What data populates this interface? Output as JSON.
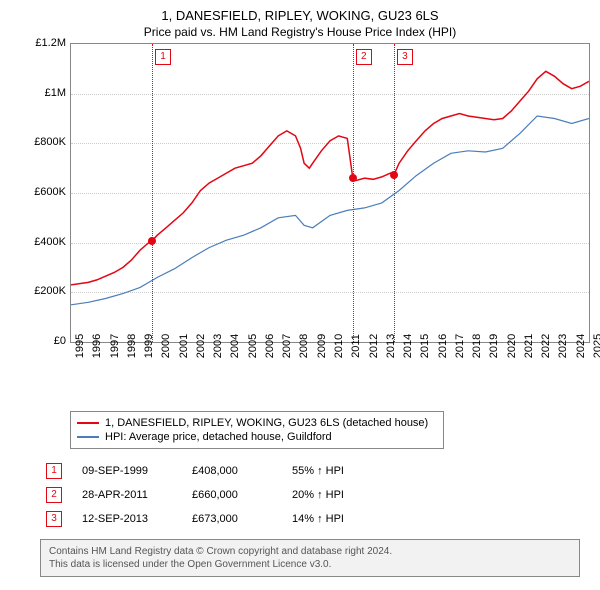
{
  "title": "1, DANESFIELD, RIPLEY, WOKING, GU23 6LS",
  "subtitle": "Price paid vs. HM Land Registry's House Price Index (HPI)",
  "chart": {
    "type": "line",
    "background_color": "#ffffff",
    "grid_color": "#cccccc",
    "border_color": "#888888",
    "x_start": 1995,
    "x_end": 2025,
    "x_ticks": [
      1995,
      1996,
      1997,
      1998,
      1999,
      2000,
      2001,
      2002,
      2003,
      2004,
      2005,
      2006,
      2007,
      2008,
      2009,
      2010,
      2011,
      2012,
      2013,
      2014,
      2015,
      2016,
      2017,
      2018,
      2019,
      2020,
      2021,
      2022,
      2023,
      2024,
      2025
    ],
    "y_min": 0,
    "y_max": 1200000,
    "y_ticks": [
      {
        "v": 0,
        "label": "£0"
      },
      {
        "v": 200000,
        "label": "£200K"
      },
      {
        "v": 400000,
        "label": "£400K"
      },
      {
        "v": 600000,
        "label": "£600K"
      },
      {
        "v": 800000,
        "label": "£800K"
      },
      {
        "v": 1000000,
        "label": "£1M"
      },
      {
        "v": 1200000,
        "label": "£1.2M"
      }
    ],
    "tick_fontsize": 11,
    "line_width_red": 1.5,
    "line_width_blue": 1.2,
    "series_red": {
      "color": "#e30613",
      "label": "1, DANESFIELD, RIPLEY, WOKING, GU23 6LS (detached house)",
      "points": [
        [
          1995.0,
          230000
        ],
        [
          1995.5,
          235000
        ],
        [
          1996.0,
          240000
        ],
        [
          1996.5,
          250000
        ],
        [
          1997.0,
          265000
        ],
        [
          1997.5,
          280000
        ],
        [
          1998.0,
          300000
        ],
        [
          1998.5,
          330000
        ],
        [
          1999.0,
          370000
        ],
        [
          1999.5,
          400000
        ],
        [
          1999.69,
          408000
        ],
        [
          2000.0,
          430000
        ],
        [
          2000.5,
          460000
        ],
        [
          2001.0,
          490000
        ],
        [
          2001.5,
          520000
        ],
        [
          2002.0,
          560000
        ],
        [
          2002.5,
          610000
        ],
        [
          2003.0,
          640000
        ],
        [
          2003.5,
          660000
        ],
        [
          2004.0,
          680000
        ],
        [
          2004.5,
          700000
        ],
        [
          2005.0,
          710000
        ],
        [
          2005.5,
          720000
        ],
        [
          2006.0,
          750000
        ],
        [
          2006.5,
          790000
        ],
        [
          2007.0,
          830000
        ],
        [
          2007.5,
          850000
        ],
        [
          2008.0,
          830000
        ],
        [
          2008.3,
          780000
        ],
        [
          2008.5,
          720000
        ],
        [
          2008.8,
          700000
        ],
        [
          2009.0,
          720000
        ],
        [
          2009.5,
          770000
        ],
        [
          2010.0,
          810000
        ],
        [
          2010.5,
          830000
        ],
        [
          2011.0,
          820000
        ],
        [
          2011.32,
          660000
        ],
        [
          2011.5,
          650000
        ],
        [
          2012.0,
          660000
        ],
        [
          2012.5,
          655000
        ],
        [
          2013.0,
          665000
        ],
        [
          2013.5,
          680000
        ],
        [
          2013.7,
          673000
        ],
        [
          2014.0,
          720000
        ],
        [
          2014.5,
          770000
        ],
        [
          2015.0,
          810000
        ],
        [
          2015.5,
          850000
        ],
        [
          2016.0,
          880000
        ],
        [
          2016.5,
          900000
        ],
        [
          2017.0,
          910000
        ],
        [
          2017.5,
          920000
        ],
        [
          2018.0,
          910000
        ],
        [
          2018.5,
          905000
        ],
        [
          2019.0,
          900000
        ],
        [
          2019.5,
          895000
        ],
        [
          2020.0,
          900000
        ],
        [
          2020.5,
          930000
        ],
        [
          2021.0,
          970000
        ],
        [
          2021.5,
          1010000
        ],
        [
          2022.0,
          1060000
        ],
        [
          2022.5,
          1090000
        ],
        [
          2023.0,
          1070000
        ],
        [
          2023.5,
          1040000
        ],
        [
          2024.0,
          1020000
        ],
        [
          2024.5,
          1030000
        ],
        [
          2025.0,
          1050000
        ]
      ]
    },
    "series_blue": {
      "color": "#4a7ebb",
      "label": "HPI: Average price, detached house, Guildford",
      "points": [
        [
          1995.0,
          150000
        ],
        [
          1996.0,
          160000
        ],
        [
          1997.0,
          175000
        ],
        [
          1998.0,
          195000
        ],
        [
          1999.0,
          220000
        ],
        [
          2000.0,
          260000
        ],
        [
          2001.0,
          295000
        ],
        [
          2002.0,
          340000
        ],
        [
          2003.0,
          380000
        ],
        [
          2004.0,
          410000
        ],
        [
          2005.0,
          430000
        ],
        [
          2006.0,
          460000
        ],
        [
          2007.0,
          500000
        ],
        [
          2008.0,
          510000
        ],
        [
          2008.5,
          470000
        ],
        [
          2009.0,
          460000
        ],
        [
          2010.0,
          510000
        ],
        [
          2011.0,
          530000
        ],
        [
          2012.0,
          540000
        ],
        [
          2013.0,
          560000
        ],
        [
          2014.0,
          610000
        ],
        [
          2015.0,
          670000
        ],
        [
          2016.0,
          720000
        ],
        [
          2017.0,
          760000
        ],
        [
          2018.0,
          770000
        ],
        [
          2019.0,
          765000
        ],
        [
          2020.0,
          780000
        ],
        [
          2021.0,
          840000
        ],
        [
          2022.0,
          910000
        ],
        [
          2023.0,
          900000
        ],
        [
          2024.0,
          880000
        ],
        [
          2025.0,
          900000
        ]
      ]
    },
    "event_lines": [
      {
        "n": "1",
        "year": 1999.69,
        "price": 408000,
        "color": "#e30613"
      },
      {
        "n": "2",
        "year": 2011.32,
        "price": 660000,
        "color": "#e30613"
      },
      {
        "n": "3",
        "year": 2013.7,
        "price": 673000,
        "color": "#e30613"
      }
    ]
  },
  "legend": {
    "border_color": "#888888",
    "fontsize": 11
  },
  "events": [
    {
      "n": "1",
      "date": "09-SEP-1999",
      "price": "£408,000",
      "pct": "55% ↑ HPI",
      "color": "#e30613"
    },
    {
      "n": "2",
      "date": "28-APR-2011",
      "price": "£660,000",
      "pct": "20% ↑ HPI",
      "color": "#e30613"
    },
    {
      "n": "3",
      "date": "12-SEP-2013",
      "price": "£673,000",
      "pct": "14% ↑ HPI",
      "color": "#e30613"
    }
  ],
  "footer": {
    "line1": "Contains HM Land Registry data © Crown copyright and database right 2024.",
    "line2": "This data is licensed under the Open Government Licence v3.0.",
    "bg": "#f2f2f2",
    "color": "#555555"
  }
}
